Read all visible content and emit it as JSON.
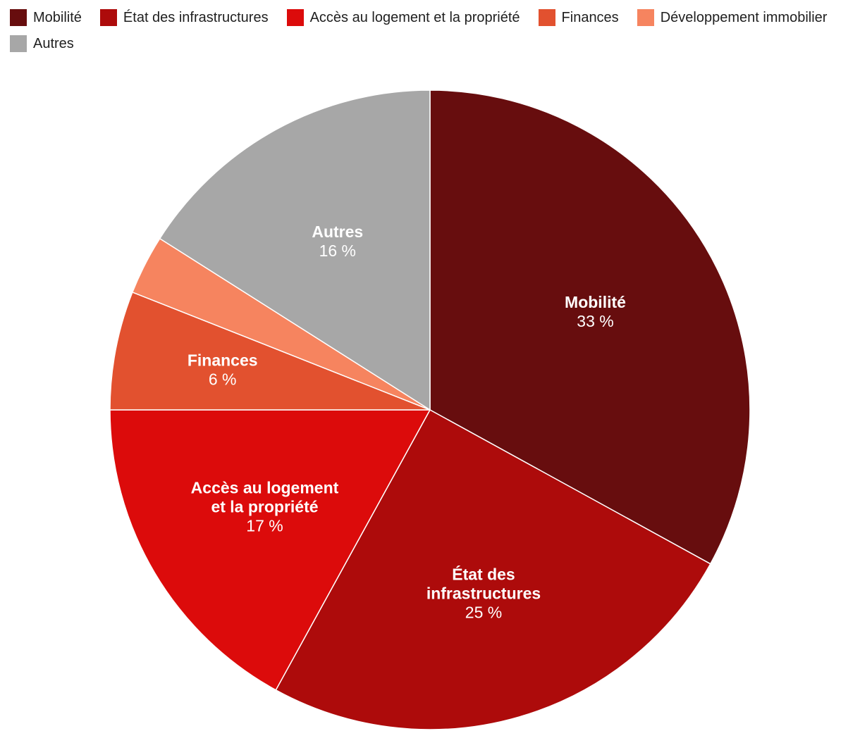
{
  "chart_data": {
    "type": "pie",
    "title": "",
    "unit": "%",
    "start_angle_deg_from_top": 0,
    "direction": "clockwise",
    "legend_position": "top-left",
    "slices": [
      {
        "label": "Mobilité",
        "value": 33,
        "value_label": "33 %",
        "color": "#670d0e",
        "label_lines": [
          "Mobilité"
        ]
      },
      {
        "label": "État des infrastructures",
        "value": 25,
        "value_label": "25 %",
        "color": "#ad0b0b",
        "label_lines": [
          "État des",
          "infrastructures"
        ]
      },
      {
        "label": "Accès au logement et la propriété",
        "value": 17,
        "value_label": "17 %",
        "color": "#dc0b0b",
        "label_lines": [
          "Accès au logement",
          "et la propriété"
        ]
      },
      {
        "label": "Finances",
        "value": 6,
        "value_label": "6 %",
        "color": "#e2512f",
        "label_lines": [
          "Finances"
        ]
      },
      {
        "label": "Développement immobilier",
        "value": 3,
        "value_label": "",
        "color": "#f6845f",
        "label_lines": []
      },
      {
        "label": "Autres",
        "value": 16,
        "value_label": "16 %",
        "color": "#a7a7a7",
        "label_lines": [
          "Autres"
        ]
      }
    ]
  }
}
